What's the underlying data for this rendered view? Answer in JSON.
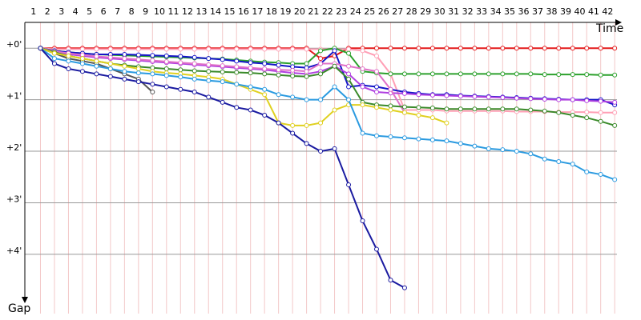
{
  "chart_data": {
    "type": "line",
    "x_label": "Time",
    "y_label": "Gap",
    "categories": [
      "1",
      "2",
      "3",
      "4",
      "5",
      "6",
      "7",
      "8",
      "9",
      "10",
      "11",
      "12",
      "13",
      "14",
      "15",
      "16",
      "17",
      "18",
      "19",
      "20",
      "21",
      "22",
      "23",
      "24",
      "25",
      "26",
      "27",
      "28",
      "29",
      "30",
      "31",
      "32",
      "33",
      "34",
      "35",
      "36",
      "37",
      "38",
      "39",
      "40",
      "41",
      "42"
    ],
    "ylim": [
      -0.5,
      5.15
    ],
    "yticks": [
      {
        "value": 0,
        "label": "+0'"
      },
      {
        "value": 1,
        "label": "+1'"
      },
      {
        "value": 2,
        "label": "+2'"
      },
      {
        "value": 3,
        "label": "+3'"
      },
      {
        "value": 4,
        "label": "+4'"
      }
    ],
    "grid": true,
    "series": [
      {
        "color": "#e31a1c",
        "values": [
          0,
          0,
          0,
          0,
          0,
          0,
          0,
          0,
          0,
          0,
          0,
          0,
          0,
          0,
          0,
          0,
          0,
          0,
          0,
          0,
          0.2,
          0.15,
          0,
          0,
          0,
          0,
          0,
          0,
          0,
          0,
          0,
          0,
          0,
          0,
          0,
          0,
          0,
          0,
          0,
          0,
          0,
          0
        ]
      },
      {
        "color": "#ff9fb5",
        "values": [
          0,
          0.02,
          0.02,
          0.02,
          0.02,
          0.02,
          0.02,
          0.02,
          0.02,
          0.02,
          0.02,
          0.02,
          0.02,
          0.02,
          0.02,
          0.02,
          0.02,
          0.02,
          0.02,
          0.02,
          0.02,
          0.02,
          0.02,
          0.05,
          0.15,
          0.5,
          1.2,
          1.2,
          1.2,
          1.22,
          1.22,
          1.22,
          1.22,
          1.22,
          1.23,
          1.23,
          1.23,
          1.24,
          1.24,
          1.24,
          1.25,
          1.25
        ]
      },
      {
        "color": "#2ca02c",
        "values": [
          0,
          0.05,
          0.08,
          0.1,
          0.12,
          0.13,
          0.14,
          0.15,
          0.16,
          0.17,
          0.18,
          0.19,
          0.2,
          0.21,
          0.23,
          0.25,
          0.27,
          0.28,
          0.3,
          0.3,
          0.05,
          0,
          0.1,
          0.45,
          0.48,
          0.5,
          0.5,
          0.5,
          0.5,
          0.5,
          0.5,
          0.5,
          0.5,
          0.5,
          0.5,
          0.5,
          0.51,
          0.51,
          0.51,
          0.51,
          0.52,
          0.52
        ]
      },
      {
        "color": "#1515c8",
        "values": [
          0,
          0.05,
          0.08,
          0.1,
          0.12,
          0.12,
          0.12,
          0.13,
          0.14,
          0.15,
          0.16,
          0.18,
          0.2,
          0.22,
          0.25,
          0.28,
          0.3,
          0.33,
          0.36,
          0.38,
          0.3,
          0.05,
          0.75,
          0.72,
          0.75,
          0.8,
          0.85,
          0.88,
          0.9,
          0.9,
          0.92,
          0.93,
          0.94,
          0.95,
          0.96,
          0.97,
          0.98,
          0.99,
          1.0,
          1.0,
          1.0,
          1.1
        ]
      },
      {
        "color": "#b040e0",
        "values": [
          0,
          0.08,
          0.12,
          0.15,
          0.18,
          0.2,
          0.22,
          0.24,
          0.26,
          0.28,
          0.3,
          0.32,
          0.34,
          0.36,
          0.38,
          0.4,
          0.42,
          0.45,
          0.48,
          0.5,
          0.45,
          0.35,
          0.5,
          0.75,
          0.85,
          0.87,
          0.88,
          0.9,
          0.91,
          0.92,
          0.93,
          0.94,
          0.95,
          0.96,
          0.97,
          0.98,
          0.99,
          1.0,
          1.0,
          1.02,
          1.03,
          1.05
        ]
      },
      {
        "color": "#e070c8",
        "values": [
          0,
          0.06,
          0.1,
          0.13,
          0.16,
          0.18,
          0.2,
          0.22,
          0.24,
          0.26,
          0.28,
          0.3,
          0.32,
          0.34,
          0.36,
          0.38,
          0.4,
          0.42,
          0.43,
          0.45,
          0.3,
          0.3,
          0.35,
          0.4,
          0.45,
          0.8,
          1.25,
          null,
          null,
          null,
          null,
          null,
          null,
          null,
          null,
          null,
          null,
          null,
          null,
          null,
          null,
          null
        ]
      },
      {
        "color": "#3a8a2a",
        "values": [
          0,
          0.08,
          0.15,
          0.2,
          0.25,
          0.3,
          0.33,
          0.36,
          0.38,
          0.4,
          0.42,
          0.44,
          0.45,
          0.46,
          0.47,
          0.48,
          0.5,
          0.52,
          0.54,
          0.55,
          0.5,
          0.35,
          0.6,
          1.05,
          1.1,
          1.12,
          1.14,
          1.15,
          1.16,
          1.18,
          1.18,
          1.18,
          1.18,
          1.18,
          1.18,
          1.2,
          1.22,
          1.25,
          1.3,
          1.35,
          1.42,
          1.5
        ]
      },
      {
        "color": "#555555",
        "values": [
          0,
          0.1,
          0.2,
          0.25,
          0.3,
          0.4,
          0.5,
          0.6,
          0.85,
          null,
          null,
          null,
          null,
          null,
          null,
          null,
          null,
          null,
          null,
          null,
          null,
          null,
          null,
          null,
          null,
          null,
          null,
          null,
          null,
          null,
          null,
          null,
          null,
          null,
          null,
          null,
          null,
          null,
          null,
          null,
          null,
          null
        ]
      },
      {
        "color": "#e0d020",
        "values": [
          0,
          0.1,
          0.15,
          0.2,
          0.25,
          0.3,
          0.35,
          0.4,
          0.45,
          0.48,
          0.5,
          0.53,
          0.56,
          0.6,
          0.7,
          0.8,
          0.9,
          1.45,
          1.5,
          1.5,
          1.45,
          1.2,
          1.1,
          1.1,
          1.15,
          1.2,
          1.25,
          1.3,
          1.35,
          1.45,
          null,
          null,
          null,
          null,
          null,
          null,
          null,
          null,
          null,
          null,
          null,
          null
        ]
      },
      {
        "color": "#2a9ae0",
        "values": [
          0,
          0.2,
          0.25,
          0.3,
          0.35,
          0.4,
          0.45,
          0.48,
          0.5,
          0.53,
          0.56,
          0.6,
          0.63,
          0.65,
          0.7,
          0.75,
          0.8,
          0.9,
          0.95,
          1.0,
          1.0,
          0.75,
          1.0,
          1.65,
          1.7,
          1.72,
          1.74,
          1.76,
          1.78,
          1.8,
          1.85,
          1.9,
          1.95,
          1.97,
          2.0,
          2.05,
          2.15,
          2.2,
          2.25,
          2.4,
          2.45,
          2.55
        ]
      },
      {
        "color": "#1a1aa0",
        "values": [
          0,
          0.3,
          0.4,
          0.45,
          0.5,
          0.55,
          0.6,
          0.65,
          0.7,
          0.75,
          0.8,
          0.85,
          0.95,
          1.05,
          1.15,
          1.2,
          1.3,
          1.45,
          1.65,
          1.85,
          2.0,
          1.95,
          2.65,
          3.35,
          3.9,
          4.5,
          4.65,
          null,
          null,
          null,
          null,
          null,
          null,
          null,
          null,
          null,
          null,
          null,
          null,
          null,
          null,
          null
        ]
      }
    ]
  }
}
